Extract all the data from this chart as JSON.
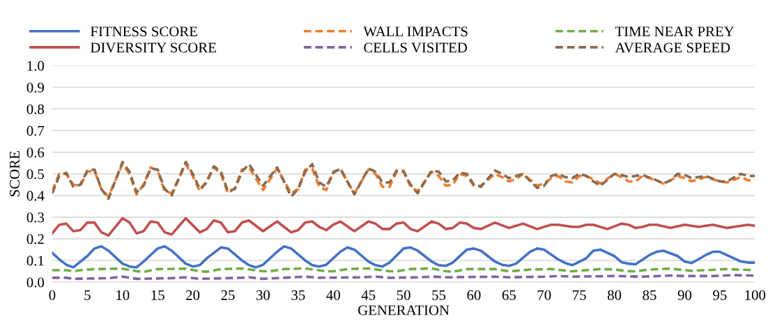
{
  "chart_data": {
    "type": "line",
    "xlabel": "GENERATION",
    "ylabel": "SCORE",
    "xlim": [
      0,
      100
    ],
    "xticks": [
      0,
      5,
      10,
      15,
      20,
      25,
      30,
      35,
      40,
      45,
      50,
      55,
      60,
      65,
      70,
      75,
      80,
      85,
      90,
      95,
      100
    ],
    "ylim": [
      0,
      1
    ],
    "yticks": [
      {
        "value": 0,
        "label": "0.0"
      },
      {
        "value": 0.1,
        "label": "0.1"
      },
      {
        "value": 0.2,
        "label": "0.2"
      },
      {
        "value": 0.3,
        "label": "0.3"
      },
      {
        "value": 0.4,
        "label": "0.4"
      },
      {
        "value": 0.5,
        "label": "0.5"
      },
      {
        "value": 0.6,
        "label": "0.6"
      },
      {
        "value": 0.7,
        "label": "0.7"
      },
      {
        "value": 0.8,
        "label": "0.8"
      },
      {
        "value": 0.9,
        "label": "0.9"
      },
      {
        "value": 1,
        "label": "1.0"
      }
    ],
    "grid": "y",
    "legend": "top",
    "marker": "none",
    "series": [
      {
        "name": "FITNESS SCORE",
        "color": "#4472c4",
        "line_style": "solid",
        "x": [
          0,
          1,
          2,
          3,
          5,
          6,
          7,
          8,
          10,
          11,
          12,
          13,
          15,
          16,
          17,
          19,
          20,
          21,
          22,
          24,
          25,
          27,
          28,
          29,
          30,
          32,
          33,
          34,
          36,
          37,
          38,
          39,
          41,
          42,
          43,
          45,
          46,
          47,
          48,
          50,
          51,
          52,
          54,
          55,
          56,
          57,
          59,
          60,
          61,
          63,
          64,
          65,
          66,
          68,
          69,
          70,
          72,
          73,
          74,
          76,
          77,
          78,
          80,
          81,
          82,
          83,
          85,
          86,
          87,
          89,
          90,
          91,
          93,
          94,
          95,
          97,
          98,
          99,
          100
        ],
        "values": [
          0.135,
          0.105,
          0.08,
          0.068,
          0.12,
          0.155,
          0.165,
          0.145,
          0.085,
          0.072,
          0.068,
          0.095,
          0.155,
          0.165,
          0.145,
          0.085,
          0.072,
          0.078,
          0.11,
          0.16,
          0.155,
          0.1,
          0.078,
          0.068,
          0.08,
          0.14,
          0.165,
          0.155,
          0.1,
          0.078,
          0.072,
          0.08,
          0.14,
          0.16,
          0.15,
          0.095,
          0.078,
          0.072,
          0.09,
          0.155,
          0.16,
          0.145,
          0.095,
          0.078,
          0.075,
          0.09,
          0.15,
          0.155,
          0.145,
          0.095,
          0.08,
          0.075,
          0.085,
          0.14,
          0.155,
          0.15,
          0.105,
          0.088,
          0.078,
          0.11,
          0.145,
          0.15,
          0.12,
          0.092,
          0.085,
          0.082,
          0.125,
          0.14,
          0.145,
          0.12,
          0.095,
          0.088,
          0.125,
          0.14,
          0.14,
          0.11,
          0.095,
          0.09,
          0.09
        ]
      },
      {
        "name": "DIVERSITY SCORE",
        "color": "#c0504d",
        "line_style": "solid",
        "x": [
          0,
          1,
          2,
          3,
          4,
          5,
          6,
          7,
          8,
          10,
          11,
          12,
          13,
          14,
          15,
          16,
          17,
          19,
          21,
          22,
          23,
          24,
          25,
          26,
          27,
          28,
          30,
          32,
          34,
          35,
          36,
          37,
          38,
          39,
          40,
          41,
          43,
          45,
          46,
          47,
          48,
          49,
          50,
          51,
          52,
          54,
          55,
          56,
          57,
          58,
          59,
          60,
          61,
          63,
          65,
          67,
          69,
          71,
          72,
          74,
          75,
          76,
          77,
          79,
          81,
          82,
          83,
          84,
          85,
          86,
          88,
          90,
          92,
          94,
          96,
          97,
          99,
          100
        ],
        "values": [
          0.225,
          0.265,
          0.27,
          0.235,
          0.24,
          0.275,
          0.275,
          0.23,
          0.215,
          0.295,
          0.275,
          0.225,
          0.235,
          0.28,
          0.275,
          0.23,
          0.22,
          0.295,
          0.23,
          0.245,
          0.285,
          0.275,
          0.23,
          0.235,
          0.275,
          0.285,
          0.235,
          0.28,
          0.23,
          0.24,
          0.275,
          0.28,
          0.255,
          0.24,
          0.265,
          0.28,
          0.235,
          0.28,
          0.27,
          0.245,
          0.245,
          0.27,
          0.275,
          0.245,
          0.235,
          0.28,
          0.27,
          0.245,
          0.25,
          0.275,
          0.27,
          0.25,
          0.245,
          0.275,
          0.25,
          0.27,
          0.245,
          0.265,
          0.265,
          0.255,
          0.255,
          0.265,
          0.265,
          0.245,
          0.27,
          0.265,
          0.25,
          0.255,
          0.265,
          0.265,
          0.25,
          0.265,
          0.255,
          0.265,
          0.25,
          0.255,
          0.265,
          0.26
        ]
      },
      {
        "name": "WALL IMPACTS",
        "color": "#ed7d31",
        "line_style": "dashed",
        "x": [
          0,
          1,
          2,
          3,
          4,
          5,
          6,
          7,
          8,
          10,
          11,
          12,
          13,
          14,
          15,
          16,
          17,
          19,
          20,
          21,
          22,
          23,
          24,
          25,
          26,
          27,
          28,
          30,
          32,
          34,
          35,
          36,
          37,
          38,
          39,
          40,
          41,
          43,
          45,
          46,
          47,
          48,
          49,
          50,
          51,
          52,
          54,
          55,
          56,
          57,
          58,
          59,
          60,
          61,
          63,
          64,
          65,
          66,
          67,
          69,
          70,
          71,
          72,
          73,
          74,
          75,
          76,
          77,
          78,
          80,
          81,
          82,
          83,
          84,
          86,
          87,
          88,
          89,
          90,
          91,
          93,
          95,
          96,
          98,
          99,
          100
        ],
        "values": [
          0.42,
          0.5,
          0.5,
          0.45,
          0.445,
          0.51,
          0.515,
          0.43,
          0.395,
          0.545,
          0.5,
          0.405,
          0.45,
          0.53,
          0.515,
          0.42,
          0.41,
          0.545,
          0.49,
          0.42,
          0.47,
          0.53,
          0.5,
          0.41,
          0.435,
          0.52,
          0.53,
          0.425,
          0.525,
          0.41,
          0.43,
          0.52,
          0.525,
          0.44,
          0.425,
          0.51,
          0.52,
          0.41,
          0.52,
          0.5,
          0.44,
          0.44,
          0.51,
          0.515,
          0.44,
          0.42,
          0.51,
          0.49,
          0.445,
          0.45,
          0.5,
          0.49,
          0.445,
          0.445,
          0.5,
          0.485,
          0.465,
          0.475,
          0.5,
          0.445,
          0.455,
          0.48,
          0.49,
          0.465,
          0.46,
          0.49,
          0.49,
          0.475,
          0.455,
          0.5,
          0.485,
          0.465,
          0.465,
          0.49,
          0.47,
          0.455,
          0.47,
          0.49,
          0.48,
          0.465,
          0.485,
          0.465,
          0.46,
          0.485,
          0.47,
          0.47
        ]
      },
      {
        "name": "CELLS VISITED",
        "color": "#8064a2",
        "line_style": "dashed",
        "x": [
          0,
          2,
          3,
          8,
          10,
          12,
          17,
          19,
          21,
          27,
          28,
          30,
          33,
          36,
          38,
          44,
          46,
          48,
          52,
          54,
          56,
          63,
          65,
          70,
          72,
          74,
          80,
          84,
          88,
          90,
          94,
          97,
          100
        ],
        "values": [
          0.02,
          0.02,
          0.015,
          0.018,
          0.025,
          0.015,
          0.018,
          0.022,
          0.015,
          0.02,
          0.022,
          0.015,
          0.02,
          0.025,
          0.02,
          0.022,
          0.025,
          0.02,
          0.022,
          0.025,
          0.022,
          0.025,
          0.022,
          0.025,
          0.028,
          0.025,
          0.028,
          0.025,
          0.03,
          0.028,
          0.028,
          0.032,
          0.03
        ]
      },
      {
        "name": "TIME NEAR PREY",
        "color": "#70ad47",
        "line_style": "dashed",
        "x": [
          0,
          2,
          3,
          4,
          6,
          10,
          12,
          13,
          15,
          19,
          21,
          22,
          24,
          27,
          30,
          31,
          33,
          36,
          39,
          40,
          42,
          45,
          48,
          49,
          51,
          54,
          56,
          57,
          59,
          63,
          65,
          66,
          68,
          71,
          74,
          76,
          78,
          80,
          82,
          83,
          85,
          88,
          91,
          93,
          96,
          100
        ],
        "values": [
          0.055,
          0.055,
          0.05,
          0.055,
          0.06,
          0.062,
          0.05,
          0.047,
          0.06,
          0.062,
          0.05,
          0.048,
          0.06,
          0.063,
          0.05,
          0.05,
          0.06,
          0.063,
          0.05,
          0.05,
          0.06,
          0.063,
          0.05,
          0.05,
          0.06,
          0.063,
          0.05,
          0.048,
          0.06,
          0.06,
          0.05,
          0.052,
          0.058,
          0.06,
          0.05,
          0.055,
          0.06,
          0.058,
          0.05,
          0.05,
          0.058,
          0.062,
          0.052,
          0.055,
          0.06,
          0.055
        ]
      },
      {
        "name": "AVERAGE SPEED",
        "color": "#8c6b4f",
        "line_style": "dashed",
        "x": [
          0,
          1,
          2,
          3,
          4,
          5,
          6,
          7,
          8,
          10,
          11,
          12,
          13,
          14,
          15,
          16,
          17,
          19,
          20,
          21,
          22,
          23,
          24,
          25,
          26,
          27,
          28,
          30,
          32,
          34,
          35,
          36,
          37,
          38,
          39,
          40,
          41,
          43,
          45,
          46,
          47,
          48,
          49,
          50,
          51,
          52,
          54,
          55,
          56,
          57,
          58,
          59,
          60,
          61,
          63,
          64,
          65,
          66,
          67,
          69,
          70,
          71,
          72,
          73,
          74,
          75,
          76,
          77,
          78,
          80,
          81,
          82,
          84,
          86,
          87,
          88,
          89,
          90,
          91,
          93,
          95,
          96,
          98,
          99,
          100
        ],
        "values": [
          0.41,
          0.49,
          0.505,
          0.44,
          0.45,
          0.515,
          0.52,
          0.43,
          0.385,
          0.555,
          0.51,
          0.415,
          0.445,
          0.525,
          0.52,
          0.43,
          0.4,
          0.555,
          0.5,
          0.43,
          0.46,
          0.535,
          0.51,
          0.42,
          0.43,
          0.51,
          0.545,
          0.445,
          0.53,
          0.395,
          0.43,
          0.51,
          0.545,
          0.46,
          0.44,
          0.505,
          0.525,
          0.405,
          0.525,
          0.51,
          0.46,
          0.46,
          0.515,
          0.51,
          0.45,
          0.41,
          0.515,
          0.51,
          0.465,
          0.47,
          0.505,
          0.5,
          0.45,
          0.44,
          0.515,
          0.5,
          0.48,
          0.49,
          0.5,
          0.435,
          0.445,
          0.49,
          0.5,
          0.485,
          0.48,
          0.5,
          0.49,
          0.465,
          0.445,
          0.5,
          0.495,
          0.485,
          0.495,
          0.47,
          0.455,
          0.47,
          0.5,
          0.495,
          0.48,
          0.49,
          0.465,
          0.465,
          0.5,
          0.49,
          0.49
        ]
      }
    ]
  }
}
